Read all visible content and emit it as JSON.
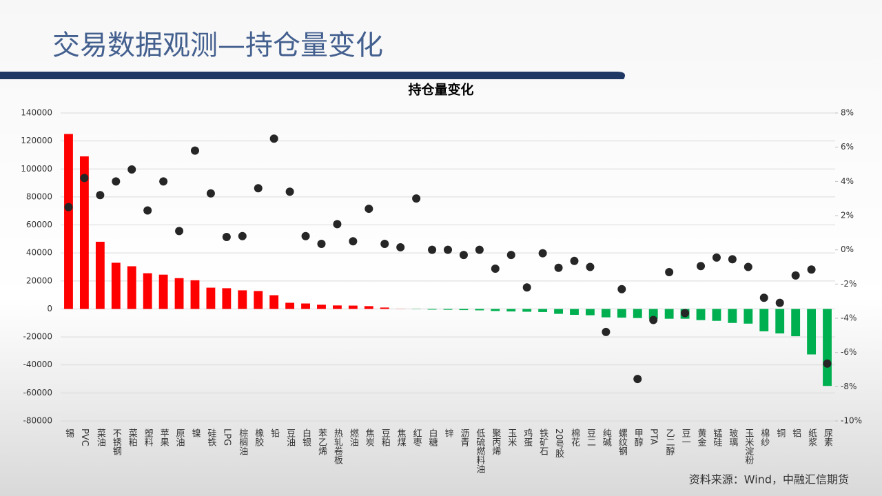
{
  "slide_title": "交易数据观测—持仓量变化",
  "source": "资料来源：Wind，中融汇信期货",
  "chart_data": {
    "type": "bar_dot",
    "title": "持仓量变化",
    "categories": [
      "锡",
      "PVC",
      "菜油",
      "不锈钢",
      "菜粕",
      "塑料",
      "苹果",
      "原油",
      "镍",
      "硅铁",
      "LPG",
      "棕榈油",
      "橡胶",
      "铅",
      "豆油",
      "白银",
      "苯乙烯",
      "热轧卷板",
      "燃油",
      "焦炭",
      "豆粕",
      "焦煤",
      "红枣",
      "白糖",
      "锌",
      "沥青",
      "低硫燃料油",
      "聚丙烯",
      "玉米",
      "鸡蛋",
      "铁矿石",
      "20号胶",
      "棉花",
      "豆二",
      "纯碱",
      "螺纹钢",
      "甲醇",
      "PTA",
      "乙二醇",
      "豆一",
      "黄金",
      "锰硅",
      "玻璃",
      "玉米淀粉",
      "棉纱",
      "铜",
      "铝",
      "纸浆",
      "尿素"
    ],
    "series": [
      {
        "type": "bar",
        "color": "#ff0000",
        "negative_color": "#00b050",
        "values": [
          125000,
          109000,
          48000,
          33000,
          30500,
          25500,
          24500,
          22000,
          20500,
          15200,
          14800,
          13300,
          12800,
          9800,
          4400,
          3900,
          3000,
          2500,
          2400,
          2000,
          1000,
          100,
          -200,
          -500,
          -600,
          -800,
          -1000,
          -1500,
          -1800,
          -2000,
          -2200,
          -3500,
          -4200,
          -4500,
          -6000,
          -6200,
          -6500,
          -7000,
          -7000,
          -7000,
          -8000,
          -8500,
          -10000,
          -10500,
          -16000,
          -17500,
          -19500,
          -32500,
          -55000
        ]
      },
      {
        "type": "dot",
        "color": "#262626",
        "axis": "y2",
        "values": [
          2.5,
          4.2,
          3.2,
          4.0,
          4.7,
          2.3,
          4.0,
          1.1,
          5.8,
          3.3,
          0.75,
          0.8,
          3.6,
          6.5,
          3.4,
          0.8,
          0.35,
          1.5,
          0.5,
          2.4,
          0.35,
          0.15,
          3.0,
          0,
          0,
          -0.3,
          0,
          -1.1,
          -0.3,
          -2.2,
          -0.2,
          -1.05,
          -0.65,
          -1.0,
          -4.8,
          -2.3,
          -7.55,
          -4.1,
          -1.3,
          -3.7,
          -0.95,
          -0.45,
          -0.55,
          -1.0,
          -2.8,
          -3.1,
          -1.5,
          -1.15,
          -6.65
        ]
      }
    ],
    "ylim": [
      -80000,
      140000
    ],
    "yticks": [
      -80000,
      -60000,
      -40000,
      -20000,
      0,
      20000,
      40000,
      60000,
      80000,
      100000,
      120000,
      140000
    ],
    "y2lim": [
      -10,
      8
    ],
    "y2ticks": [
      {
        "value": -10,
        "label": "-10%"
      },
      {
        "value": -8,
        "label": "-8%"
      },
      {
        "value": -6,
        "label": "-6%"
      },
      {
        "value": -4,
        "label": "-4%"
      },
      {
        "value": -2,
        "label": "-2%"
      },
      {
        "value": 0,
        "label": "0%"
      },
      {
        "value": 2,
        "label": "2%"
      },
      {
        "value": 4,
        "label": "4%"
      },
      {
        "value": 6,
        "label": "6%"
      },
      {
        "value": 8,
        "label": "8%"
      }
    ],
    "grid": true
  }
}
